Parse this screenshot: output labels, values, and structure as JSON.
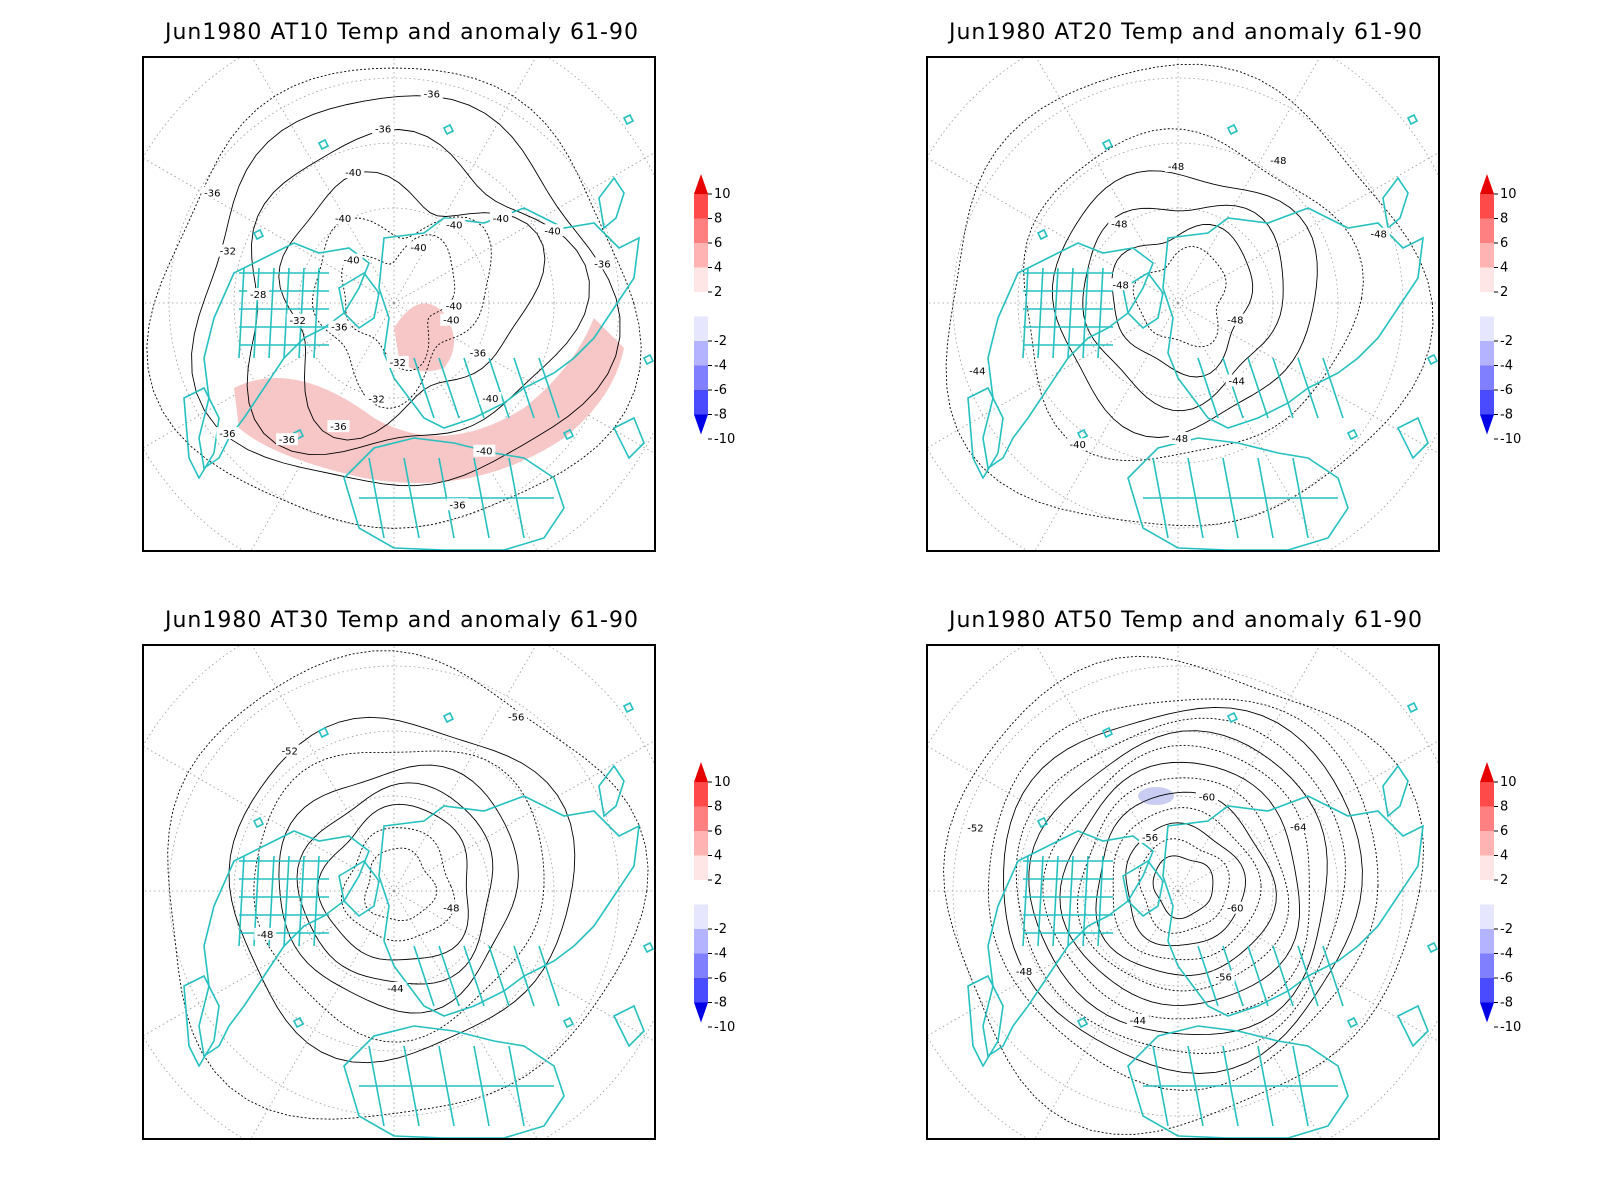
{
  "panels": [
    {
      "id": "at10",
      "title": "Jun1980 AT10 Temp and anomaly 61-90",
      "contour_labels": [
        "-40",
        "-36",
        "-40",
        "-40",
        "-36",
        "-32",
        "-32",
        "-36",
        "-36",
        "-36",
        "-36",
        "-32",
        "-28",
        "-32",
        "-36",
        "-40",
        "-40",
        "-40",
        "-36",
        "-36",
        "-40",
        "-40",
        "-40",
        "-40",
        "-36",
        "-40"
      ],
      "anomaly_color": "#f7c6c6"
    },
    {
      "id": "at20",
      "title": "Jun1980 AT20 Temp and anomaly 61-90",
      "contour_labels": [
        "-48",
        "-44",
        "-48",
        "-40",
        "-44",
        "-48",
        "-48",
        "-48",
        "-48",
        "-48"
      ],
      "anomaly_color": "#ffffff"
    },
    {
      "id": "at30",
      "title": "Jun1980 AT30 Temp and anomaly 61-90",
      "contour_labels": [
        "-48",
        "-44",
        "-48",
        "-52",
        "-56"
      ],
      "anomaly_color": "#ffffff"
    },
    {
      "id": "at50",
      "title": "Jun1980 AT50 Temp and anomaly 61-90",
      "contour_labels": [
        "-60",
        "-56",
        "-44",
        "-48",
        "-52",
        "-56",
        "-60",
        "-64"
      ],
      "anomaly_color": "#c9cdf2"
    }
  ],
  "colorbar": {
    "labels": [
      "10",
      "8",
      "6",
      "4",
      "2",
      "-2",
      "-4",
      "-6",
      "-8",
      "-10"
    ],
    "colors": [
      "#e60000",
      "#ff4a4a",
      "#ff8080",
      "#ffb3b3",
      "#ffe6e6",
      "#ffffff",
      "#e6e6ff",
      "#b3b3ff",
      "#8080ff",
      "#4a4aff",
      "#0000e6"
    ]
  },
  "coastline_color": "#26c0c0"
}
